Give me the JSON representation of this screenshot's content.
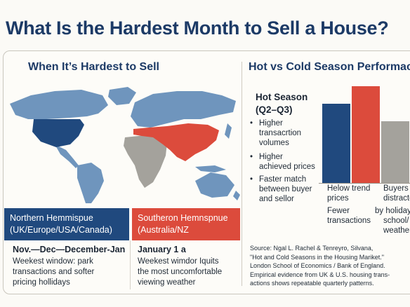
{
  "title": "What Is the Hardest Month to Sell a House?",
  "left": {
    "heading": "When It’s Hardest to Sell",
    "north": {
      "title": "Northern Hemmispue",
      "regions": "(UK/Europe/USA/Canada)",
      "months": "Nov.—Dec—December-Jan",
      "note_lines": [
        "Weekest window: park",
        "transactions and softer",
        "pricing hollidays"
      ],
      "color": "#20497e"
    },
    "south": {
      "title": "Southeron Hemnspnue",
      "regions": "(Australia/NZ",
      "months": "January 1 a",
      "note_lines": [
        "Weekest wimdor Iquits",
        "the most uncomfortable",
        "viewing weather"
      ],
      "color": "#dc4b3c"
    }
  },
  "right": {
    "heading": "Hot vs Cold Season Performace",
    "hot_season_title": "Hot Season",
    "hot_season_range": "(Q2–Q3)",
    "bullets": [
      [
        "Higher",
        "transacrtion",
        "volumes"
      ],
      [
        "Higher",
        "achieved prices"
      ],
      [
        "Faster match",
        "between buyer",
        "and sellor"
      ]
    ],
    "caption_left": [
      "Helow trend",
      "prices",
      "Fewer",
      "transactions"
    ],
    "caption_right": [
      "Buyers",
      "distracted",
      "by holidays,",
      "school/",
      "weather"
    ],
    "source_lines": [
      "Source: Ngal L. Rachel & Tenreyro, Silvana,",
      "\"Hot and Cold Seasons in the Housing Mariket.\"",
      "London School of Economics / Bank of England.",
      "Empirical evidence from UK & U.S. housing trans-",
      "actions shows repeatable quarterly patterns."
    ]
  },
  "colors": {
    "navy": "#20497e",
    "red": "#dc4b3c",
    "grey": "#a4a29c",
    "land": "#6f95bd"
  },
  "chart_data": {
    "type": "bar",
    "categories": [
      "",
      "",
      ""
    ],
    "values": [
      null,
      null,
      null
    ],
    "colors": [
      "#20497e",
      "#dc4b3c",
      "#a4a29c"
    ],
    "title": "",
    "xlabel": "",
    "ylabel": "",
    "grid": false
  }
}
